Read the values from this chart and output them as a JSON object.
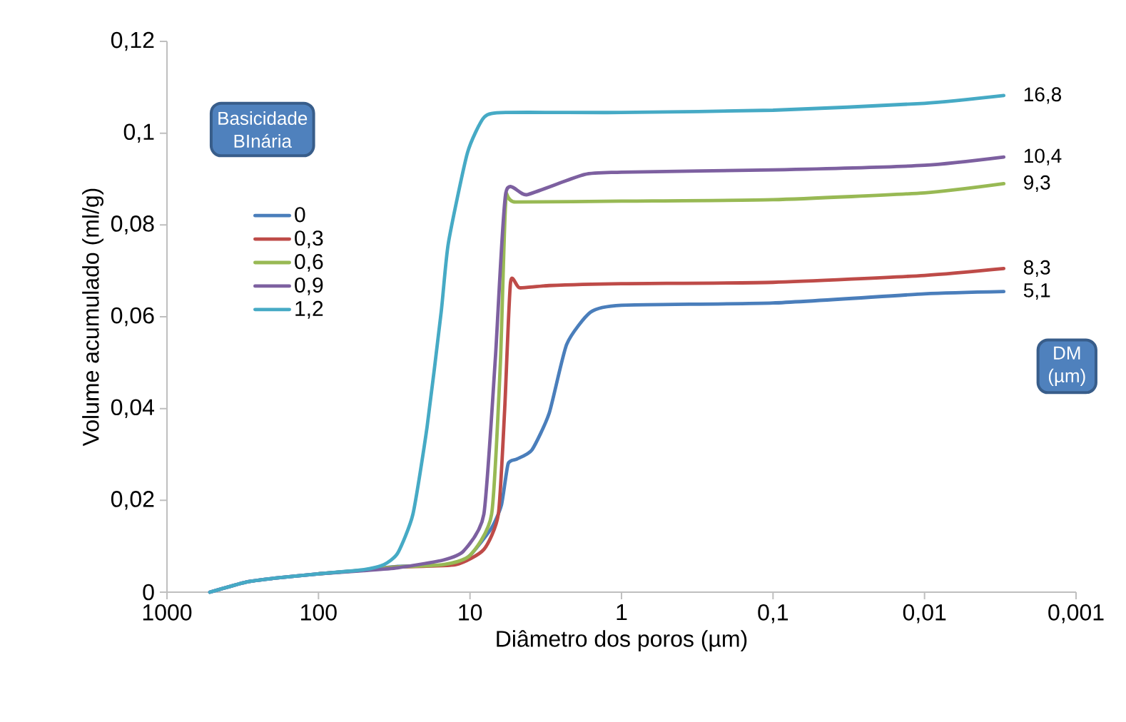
{
  "chart_data": {
    "type": "line",
    "xlabel": "Diâmetro dos poros (µm)",
    "ylabel": "Volume acumulado (ml/g)",
    "legend_title": "Basicidade BInária",
    "log": "x",
    "xlim": [
      1000,
      0.001
    ],
    "xticks": [
      1000,
      100,
      10,
      1,
      {
        "value": 0.1,
        "label": "0,1"
      },
      {
        "value": 0.01,
        "label": "0,01"
      },
      {
        "value": 0.001,
        "label": "0,001"
      }
    ],
    "ylim": [
      0,
      0.12
    ],
    "yticks": [
      0,
      {
        "value": 0.02,
        "label": "0,02"
      },
      {
        "value": 0.04,
        "label": "0,04"
      },
      {
        "value": 0.06,
        "label": "0,06"
      },
      {
        "value": 0.08,
        "label": "0,08"
      },
      {
        "value": 0.1,
        "label": "0,1"
      },
      {
        "value": 0.12,
        "label": "0,12"
      }
    ],
    "legend": "top left",
    "marker": "none",
    "line_style": "solid",
    "series": [
      {
        "name": "0",
        "color": "#4a7ebb",
        "x": [
          521,
          300,
          200,
          100,
          50,
          30,
          13,
          10,
          7.2,
          6.2,
          5.6,
          4.9,
          3.9,
          3.0,
          2.3,
          1.6,
          1,
          0.1,
          0.01,
          0.003
        ],
        "values": [
          0,
          0.0022,
          0.003,
          0.004,
          0.0048,
          0.0056,
          0.006,
          0.008,
          0.014,
          0.019,
          0.028,
          0.029,
          0.031,
          0.039,
          0.054,
          0.061,
          0.0625,
          0.063,
          0.065,
          0.0655
        ]
      },
      {
        "name": "0,3",
        "color": "#be4b48",
        "x": [
          50,
          30,
          12.4,
          8.1,
          6.5,
          5.9,
          5.4,
          4.7,
          3,
          1,
          0.1,
          0.01,
          0.003
        ],
        "values": [
          0.0048,
          0.0055,
          0.006,
          0.0093,
          0.017,
          0.04,
          0.0675,
          0.0663,
          0.0668,
          0.0672,
          0.0675,
          0.069,
          0.0705
        ]
      },
      {
        "name": "0,6",
        "color": "#98b954",
        "x": [
          100,
          50,
          30,
          15,
          10,
          7.2,
          6.3,
          5.8,
          5,
          1,
          0.1,
          0.01,
          0.003
        ],
        "values": [
          0.004,
          0.0048,
          0.0055,
          0.006,
          0.008,
          0.017,
          0.05,
          0.0855,
          0.085,
          0.0852,
          0.0855,
          0.087,
          0.089
        ]
      },
      {
        "name": "0,9",
        "color": "#7d60a0",
        "x": [
          521,
          300,
          200,
          100,
          50,
          30,
          15,
          11,
          8.1,
          6.8,
          5.8,
          4.2,
          1.76,
          1,
          0.1,
          0.01,
          0.003
        ],
        "values": [
          0,
          0.0022,
          0.003,
          0.004,
          0.0047,
          0.0053,
          0.007,
          0.009,
          0.017,
          0.051,
          0.087,
          0.0866,
          0.091,
          0.0915,
          0.092,
          0.093,
          0.0948
        ]
      },
      {
        "name": "1,2",
        "color": "#46aac5",
        "x": [
          521,
          300,
          200,
          100,
          50,
          37,
          30,
          23.8,
          19.2,
          15.5,
          13.9,
          10.4,
          8.05,
          5.8,
          1,
          0.1,
          0.01,
          0.003
        ],
        "values": [
          0,
          0.0022,
          0.003,
          0.004,
          0.0049,
          0.006,
          0.0085,
          0.017,
          0.036,
          0.061,
          0.076,
          0.0957,
          0.1035,
          0.1045,
          0.1045,
          0.105,
          0.1065,
          0.1082
        ]
      }
    ],
    "annotations": [
      "16,8",
      "10,4",
      "9,3",
      "8,3",
      "5,1",
      "DM (µm)"
    ]
  }
}
